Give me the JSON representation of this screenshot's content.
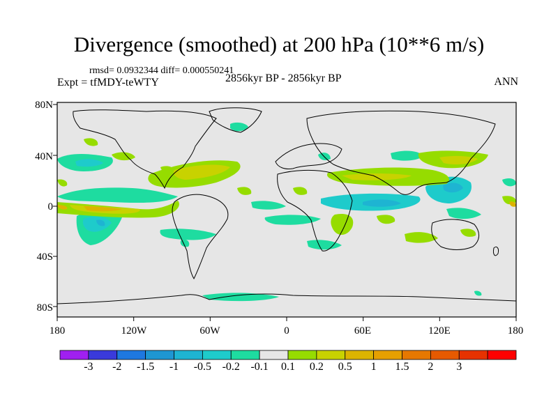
{
  "title": "Divergence (smoothed) at 200 hPa (10**6 m/s)",
  "stats": "rmsd= 0.0932344 diff= 0.000550241",
  "experiment": "Expt = tfMDY-teWTY",
  "period": "2856kyr BP - 2856kyr BP",
  "season": "ANN",
  "map": {
    "lat_labels": [
      "80N",
      "40N",
      "0",
      "40S",
      "80S"
    ],
    "lon_labels": [
      "180",
      "120W",
      "60W",
      "0",
      "60E",
      "120E",
      "180"
    ],
    "background_color": "#e6e6e6"
  },
  "colorbar": {
    "colors": [
      "#a020f0",
      "#3a3adb",
      "#1e78e0",
      "#1e96d2",
      "#1eb4d2",
      "#1ecbcb",
      "#1edca0",
      "#e6e6e6",
      "#96dc00",
      "#c8d200",
      "#dcb400",
      "#e6a000",
      "#e67800",
      "#e65a00",
      "#e63200",
      "#ff0000"
    ],
    "labels": [
      "-3",
      "-2",
      "-1.5",
      "-1",
      "-0.5",
      "-0.2",
      "-0.1",
      "0.1",
      "0.2",
      "0.5",
      "1",
      "1.5",
      "2",
      "3"
    ]
  }
}
